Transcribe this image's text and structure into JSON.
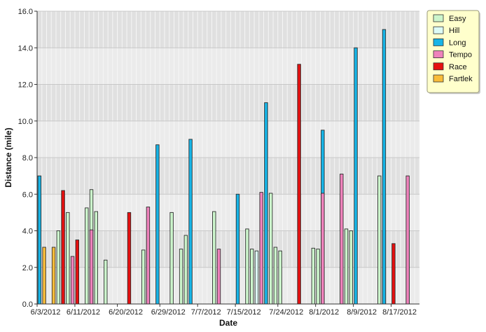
{
  "chart_data": {
    "type": "bar",
    "xlabel": "Date",
    "ylabel": "Distance (mile)",
    "ylim": [
      0,
      16
    ],
    "yticks": [
      "0.0",
      "2.0",
      "4.0",
      "6.0",
      "8.0",
      "10.0",
      "12.0",
      "14.0",
      "16.0"
    ],
    "xticks": [
      "6/3/2012",
      "6/11/2012",
      "6/20/2012",
      "6/29/2012",
      "7/7/2012",
      "7/15/2012",
      "7/24/2012",
      "8/1/2012",
      "8/9/2012",
      "8/17/2012"
    ],
    "x_range": [
      "6/3/2012",
      "8/22/2012"
    ],
    "grid": true,
    "legend_position": "top-right",
    "series": [
      {
        "name": "Easy",
        "color": "#ccf5cc",
        "points": [
          {
            "date": "6/7/2012",
            "value": 4.0
          },
          {
            "date": "6/9/2012",
            "value": 5.0
          },
          {
            "date": "6/13/2012",
            "value": 5.25
          },
          {
            "date": "6/14/2012",
            "value": 6.25
          },
          {
            "date": "6/15/2012",
            "value": 5.05
          },
          {
            "date": "6/17/2012",
            "value": 2.4
          },
          {
            "date": "6/25/2012",
            "value": 2.95
          },
          {
            "date": "6/26/2012",
            "value": 3.95
          },
          {
            "date": "7/1/2012",
            "value": 5.0
          },
          {
            "date": "7/3/2012",
            "value": 3.0
          },
          {
            "date": "7/4/2012",
            "value": 3.75
          },
          {
            "date": "7/10/2012",
            "value": 5.05
          },
          {
            "date": "7/17/2012",
            "value": 4.1
          },
          {
            "date": "7/18/2012",
            "value": 3.0
          },
          {
            "date": "7/22/2012",
            "value": 6.05
          },
          {
            "date": "7/23/2012",
            "value": 3.1
          },
          {
            "date": "7/24/2012",
            "value": 2.9
          },
          {
            "date": "7/31/2012",
            "value": 3.05
          },
          {
            "date": "8/1/2012",
            "value": 3.0
          },
          {
            "date": "8/7/2012",
            "value": 4.1
          },
          {
            "date": "8/8/2012",
            "value": 4.0
          },
          {
            "date": "8/14/2012",
            "value": 7.0
          },
          {
            "date": "8/15/2012",
            "value": 4.0
          },
          {
            "date": "8/20/2012",
            "value": 4.0
          }
        ]
      },
      {
        "name": "Hill",
        "color": "#ddfbf6",
        "points": [
          {
            "date": "7/19/2012",
            "value": 2.9
          }
        ]
      },
      {
        "name": "Long",
        "color": "#17b4e6",
        "points": [
          {
            "date": "6/3/2012",
            "value": 7.0
          },
          {
            "date": "6/28/2012",
            "value": 8.7
          },
          {
            "date": "7/5/2012",
            "value": 9.0
          },
          {
            "date": "7/15/2012",
            "value": 6.0
          },
          {
            "date": "7/21/2012",
            "value": 11.0
          },
          {
            "date": "8/2/2012",
            "value": 9.5
          },
          {
            "date": "8/9/2012",
            "value": 14.0
          },
          {
            "date": "8/15/2012",
            "value": 15.0
          }
        ]
      },
      {
        "name": "Tempo",
        "color": "#ee82bb",
        "points": [
          {
            "date": "6/10/2012",
            "value": 2.6
          },
          {
            "date": "6/14/2012",
            "value": 4.05
          },
          {
            "date": "6/26/2012",
            "value": 5.3
          },
          {
            "date": "7/11/2012",
            "value": 3.0
          },
          {
            "date": "7/20/2012",
            "value": 6.1
          },
          {
            "date": "8/2/2012",
            "value": 6.05
          },
          {
            "date": "8/6/2012",
            "value": 7.1
          },
          {
            "date": "8/20/2012",
            "value": 7.0
          }
        ]
      },
      {
        "name": "Race",
        "color": "#e51010",
        "points": [
          {
            "date": "6/8/2012",
            "value": 6.2
          },
          {
            "date": "6/11/2012",
            "value": 3.5
          },
          {
            "date": "6/22/2012",
            "value": 5.0
          },
          {
            "date": "7/28/2012",
            "value": 13.1
          },
          {
            "date": "8/17/2012",
            "value": 3.3
          }
        ]
      },
      {
        "name": "Fartlek",
        "color": "#f9bc3a",
        "points": [
          {
            "date": "6/4/2012",
            "value": 3.1
          },
          {
            "date": "6/6/2012",
            "value": 3.1
          }
        ]
      }
    ]
  }
}
